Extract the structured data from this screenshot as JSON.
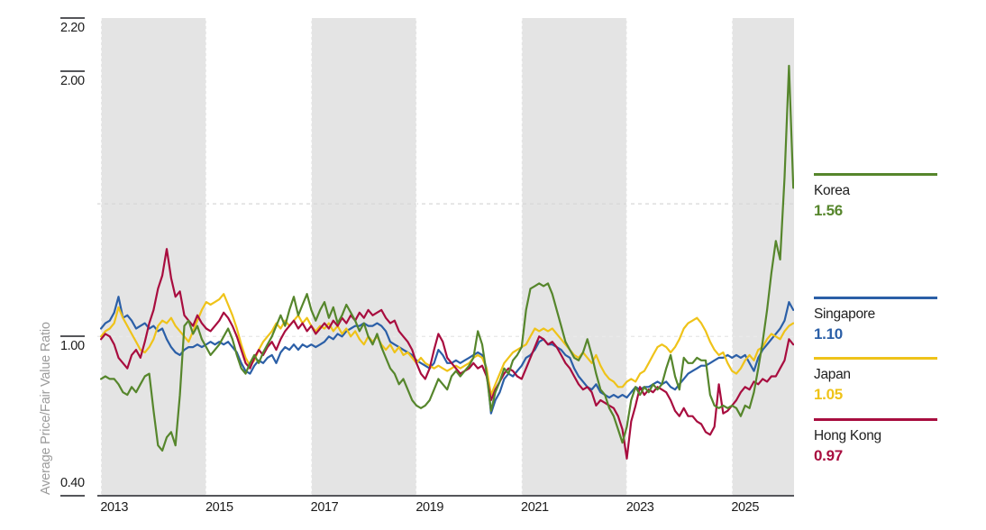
{
  "chart_data": {
    "type": "line",
    "ylabel": "Average Price/Fair Value Ratio",
    "frequency": "monthly",
    "x_start": "2012-10",
    "x_end": "2025-12",
    "band_color": "#e4e4e4",
    "shaded_periods": [
      [
        2012.75,
        2014.75
      ],
      [
        2016.75,
        2018.75
      ],
      [
        2020.75,
        2022.75
      ],
      [
        2024.75,
        2026.0
      ]
    ],
    "gridlines": [
      {
        "value": 1.5,
        "color": "#d7d7d7"
      },
      {
        "value": 1.0,
        "color": "#e9e9e9"
      }
    ],
    "y_axis": {
      "min": 0.4,
      "max": 2.2,
      "ticks": [
        {
          "label": "2.20",
          "value": 2.2,
          "label_side": "below"
        },
        {
          "label": "2.00",
          "value": 2.0,
          "label_side": "below"
        },
        {
          "label": "1.00",
          "value": 1.0,
          "label_side": "below"
        },
        {
          "label": "0.40",
          "value": 0.4,
          "label_side": "above"
        }
      ]
    },
    "x_axis": {
      "ticks": [
        {
          "label": "2013",
          "value": 2013
        },
        {
          "label": "2015",
          "value": 2015
        },
        {
          "label": "2017",
          "value": 2017
        },
        {
          "label": "2019",
          "value": 2019
        },
        {
          "label": "2021",
          "value": 2021
        },
        {
          "label": "2023",
          "value": 2023
        },
        {
          "label": "2025",
          "value": 2025
        }
      ]
    },
    "series": [
      {
        "id": "korea",
        "name": "Korea",
        "latest_value": "1.56",
        "color": "#56862c",
        "values": [
          0.84,
          0.85,
          0.84,
          0.84,
          0.82,
          0.79,
          0.78,
          0.81,
          0.79,
          0.82,
          0.85,
          0.86,
          0.72,
          0.59,
          0.57,
          0.62,
          0.64,
          0.59,
          0.78,
          1.04,
          1.06,
          1.01,
          1.04,
          0.99,
          0.96,
          0.93,
          0.95,
          0.97,
          1.0,
          1.03,
          0.99,
          0.93,
          0.88,
          0.86,
          0.9,
          0.93,
          0.9,
          0.94,
          0.97,
          1.0,
          1.04,
          1.08,
          1.04,
          1.1,
          1.15,
          1.08,
          1.12,
          1.16,
          1.1,
          1.06,
          1.1,
          1.13,
          1.07,
          1.11,
          1.05,
          1.08,
          1.12,
          1.09,
          1.06,
          1.02,
          1.05,
          1.0,
          0.97,
          1.01,
          0.96,
          0.92,
          0.88,
          0.86,
          0.82,
          0.84,
          0.8,
          0.76,
          0.74,
          0.73,
          0.74,
          0.76,
          0.8,
          0.84,
          0.82,
          0.8,
          0.85,
          0.87,
          0.85,
          0.87,
          0.89,
          0.92,
          1.02,
          0.97,
          0.86,
          0.72,
          0.79,
          0.83,
          0.88,
          0.86,
          0.91,
          0.93,
          0.96,
          1.1,
          1.18,
          1.19,
          1.2,
          1.19,
          1.2,
          1.16,
          1.1,
          1.04,
          0.98,
          0.95,
          0.92,
          0.91,
          0.94,
          0.99,
          0.93,
          0.86,
          0.8,
          0.78,
          0.73,
          0.7,
          0.65,
          0.6,
          0.66,
          0.76,
          0.81,
          0.78,
          0.81,
          0.79,
          0.82,
          0.8,
          0.82,
          0.88,
          0.93,
          0.85,
          0.8,
          0.92,
          0.9,
          0.9,
          0.92,
          0.91,
          0.91,
          0.78,
          0.74,
          0.73,
          0.74,
          0.73,
          0.74,
          0.73,
          0.7,
          0.74,
          0.73,
          0.79,
          0.88,
          0.98,
          1.1,
          1.24,
          1.36,
          1.29,
          1.6,
          2.02,
          1.56
        ]
      },
      {
        "id": "singapore",
        "name": "Singapore",
        "latest_value": "1.10",
        "color": "#2b5fa7",
        "values": [
          1.03,
          1.05,
          1.06,
          1.09,
          1.15,
          1.07,
          1.08,
          1.06,
          1.03,
          1.04,
          1.05,
          1.03,
          1.04,
          1.02,
          1.03,
          0.99,
          0.96,
          0.94,
          0.93,
          0.95,
          0.96,
          0.96,
          0.97,
          0.96,
          0.97,
          0.98,
          0.97,
          0.98,
          0.97,
          0.98,
          0.96,
          0.94,
          0.9,
          0.87,
          0.86,
          0.89,
          0.91,
          0.9,
          0.92,
          0.93,
          0.9,
          0.94,
          0.96,
          0.95,
          0.97,
          0.95,
          0.97,
          0.96,
          0.97,
          0.96,
          0.97,
          0.98,
          1.0,
          0.99,
          1.01,
          1.0,
          1.02,
          1.03,
          1.04,
          1.04,
          1.05,
          1.04,
          1.04,
          1.05,
          1.04,
          1.02,
          0.98,
          0.97,
          0.96,
          0.95,
          0.94,
          0.93,
          0.91,
          0.9,
          0.89,
          0.88,
          0.9,
          0.95,
          0.93,
          0.9,
          0.9,
          0.91,
          0.9,
          0.91,
          0.92,
          0.93,
          0.94,
          0.93,
          0.88,
          0.71,
          0.76,
          0.79,
          0.84,
          0.86,
          0.85,
          0.87,
          0.89,
          0.92,
          0.93,
          0.95,
          0.98,
          0.99,
          0.97,
          0.97,
          0.96,
          0.95,
          0.93,
          0.92,
          0.88,
          0.85,
          0.83,
          0.81,
          0.8,
          0.82,
          0.79,
          0.78,
          0.77,
          0.78,
          0.77,
          0.78,
          0.77,
          0.79,
          0.81,
          0.8,
          0.81,
          0.81,
          0.82,
          0.83,
          0.82,
          0.83,
          0.81,
          0.8,
          0.82,
          0.84,
          0.86,
          0.87,
          0.88,
          0.89,
          0.89,
          0.9,
          0.91,
          0.92,
          0.92,
          0.93,
          0.92,
          0.93,
          0.92,
          0.93,
          0.9,
          0.87,
          0.92,
          0.95,
          0.97,
          0.99,
          1.01,
          1.03,
          1.06,
          1.13,
          1.1
        ]
      },
      {
        "id": "japan",
        "name": "Japan",
        "latest_value": "1.05",
        "color": "#efc319",
        "values": [
          1.0,
          1.02,
          1.03,
          1.05,
          1.11,
          1.07,
          1.04,
          1.01,
          0.98,
          0.95,
          0.94,
          0.96,
          0.99,
          1.04,
          1.06,
          1.05,
          1.07,
          1.04,
          1.02,
          1.0,
          0.98,
          1.02,
          1.06,
          1.1,
          1.13,
          1.12,
          1.13,
          1.14,
          1.16,
          1.12,
          1.08,
          1.03,
          0.97,
          0.92,
          0.89,
          0.91,
          0.95,
          0.98,
          1.0,
          1.02,
          1.05,
          1.03,
          1.06,
          1.04,
          1.06,
          1.08,
          1.05,
          1.07,
          1.04,
          1.02,
          1.04,
          1.03,
          1.05,
          1.02,
          1.04,
          1.01,
          1.03,
          1.0,
          1.02,
          0.99,
          0.97,
          1.0,
          0.98,
          1.0,
          0.97,
          0.95,
          0.97,
          0.94,
          0.96,
          0.93,
          0.94,
          0.92,
          0.9,
          0.92,
          0.9,
          0.89,
          0.88,
          0.89,
          0.88,
          0.87,
          0.88,
          0.89,
          0.88,
          0.89,
          0.9,
          0.92,
          0.93,
          0.92,
          0.88,
          0.78,
          0.82,
          0.86,
          0.9,
          0.92,
          0.94,
          0.95,
          0.96,
          0.97,
          1.0,
          1.03,
          1.02,
          1.03,
          1.02,
          1.03,
          1.01,
          0.99,
          0.97,
          0.95,
          0.93,
          0.92,
          0.94,
          0.92,
          0.9,
          0.93,
          0.89,
          0.86,
          0.84,
          0.83,
          0.81,
          0.81,
          0.83,
          0.84,
          0.83,
          0.86,
          0.87,
          0.9,
          0.93,
          0.96,
          0.97,
          0.96,
          0.94,
          0.96,
          0.99,
          1.03,
          1.05,
          1.06,
          1.07,
          1.05,
          1.02,
          0.98,
          0.95,
          0.93,
          0.94,
          0.9,
          0.87,
          0.86,
          0.88,
          0.91,
          0.93,
          0.91,
          0.95,
          0.96,
          0.99,
          1.01,
          1.0,
          0.99,
          1.02,
          1.04,
          1.05
        ]
      },
      {
        "id": "hong-kong",
        "name": "Hong Kong",
        "latest_value": "0.97",
        "color": "#a80d3f",
        "values": [
          0.99,
          1.01,
          1.0,
          0.97,
          0.92,
          0.9,
          0.88,
          0.93,
          0.95,
          0.92,
          0.98,
          1.05,
          1.1,
          1.18,
          1.23,
          1.33,
          1.22,
          1.15,
          1.17,
          1.08,
          1.06,
          1.04,
          1.08,
          1.05,
          1.03,
          1.02,
          1.04,
          1.06,
          1.09,
          1.07,
          1.04,
          1.0,
          0.95,
          0.9,
          0.88,
          0.92,
          0.95,
          0.93,
          0.96,
          0.98,
          0.95,
          0.99,
          1.02,
          1.04,
          1.06,
          1.03,
          1.05,
          1.02,
          1.04,
          1.01,
          1.03,
          1.05,
          1.03,
          1.06,
          1.04,
          1.07,
          1.05,
          1.08,
          1.06,
          1.09,
          1.07,
          1.1,
          1.08,
          1.09,
          1.1,
          1.07,
          1.05,
          1.06,
          1.02,
          1.0,
          0.98,
          0.95,
          0.9,
          0.86,
          0.84,
          0.88,
          0.95,
          1.01,
          0.98,
          0.92,
          0.9,
          0.88,
          0.86,
          0.87,
          0.88,
          0.9,
          0.88,
          0.89,
          0.85,
          0.76,
          0.8,
          0.83,
          0.86,
          0.88,
          0.87,
          0.85,
          0.84,
          0.88,
          0.92,
          0.96,
          1.0,
          0.99,
          0.97,
          0.98,
          0.96,
          0.93,
          0.9,
          0.88,
          0.85,
          0.82,
          0.8,
          0.81,
          0.79,
          0.74,
          0.76,
          0.75,
          0.74,
          0.73,
          0.7,
          0.65,
          0.54,
          0.68,
          0.74,
          0.81,
          0.78,
          0.8,
          0.79,
          0.81,
          0.8,
          0.79,
          0.76,
          0.72,
          0.7,
          0.73,
          0.7,
          0.7,
          0.68,
          0.67,
          0.64,
          0.63,
          0.66,
          0.82,
          0.71,
          0.72,
          0.74,
          0.76,
          0.79,
          0.81,
          0.8,
          0.83,
          0.82,
          0.84,
          0.83,
          0.85,
          0.85,
          0.88,
          0.91,
          0.99,
          0.97
        ]
      }
    ]
  }
}
